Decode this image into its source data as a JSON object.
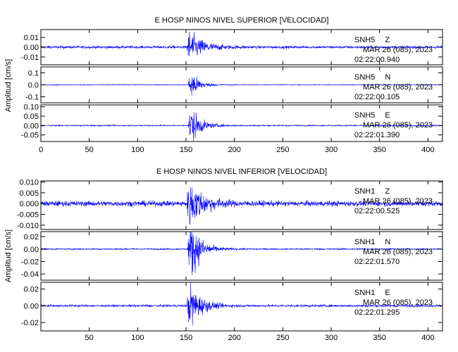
{
  "page": {
    "background": "#ffffff",
    "trace_color": "#0000ff",
    "axis_color": "#000000"
  },
  "chart_data": [
    {
      "type": "line",
      "title": "E HOSP NINOS NIVEL SUPERIOR [VELOCIDAD]",
      "xlabel": "",
      "ylabel": "Amplitud [cm/s]",
      "xlim": [
        0,
        415
      ],
      "x_ticks": [
        0,
        50,
        100,
        150,
        200,
        250,
        300,
        350,
        400
      ],
      "x_tick_labels": [
        "0",
        "50",
        "100",
        "150",
        "200",
        "250",
        "300",
        "350",
        "400"
      ],
      "panels": [
        {
          "station": "SNH5",
          "component": "Z",
          "date_label": "MAR 26 (085), 2023",
          "time_label": "02:22:00.940",
          "ylim": [
            -0.018,
            0.018
          ],
          "y_ticks": [
            0.01,
            0.0,
            -0.01
          ],
          "y_tick_labels": [
            "0.01",
            "0.00",
            "-0.01"
          ],
          "baseline_amplitude": 0.0012,
          "peak_amplitude": 0.016,
          "event_onset": 150,
          "event_peak_time": 153,
          "event_decay": 14
        },
        {
          "station": "SNH5",
          "component": "N",
          "date_label": "MAR 26 (085), 2023",
          "time_label": "02:22:00.105",
          "ylim": [
            -0.15,
            0.15
          ],
          "y_ticks": [
            0.1,
            0.0,
            -0.1
          ],
          "y_tick_labels": [
            "0.1",
            "0.0",
            "-0.1"
          ],
          "baseline_amplitude": 0.003,
          "peak_amplitude": 0.12,
          "event_onset": 152,
          "event_peak_time": 155,
          "event_decay": 8
        },
        {
          "station": "SNH5",
          "component": "E",
          "date_label": "MAR 26 (085), 2023",
          "time_label": "02:22:01.390",
          "ylim": [
            -0.085,
            0.11
          ],
          "y_ticks": [
            0.1,
            0.05,
            0.0,
            -0.05
          ],
          "y_tick_labels": [
            "0.10",
            "0.05",
            "0.00",
            "-0.05"
          ],
          "baseline_amplitude": 0.003,
          "peak_amplitude": 0.1,
          "event_onset": 152,
          "event_peak_time": 155,
          "event_decay": 9
        }
      ]
    },
    {
      "type": "line",
      "title": "E HOSP NINOS NIVEL INFERIOR [VELOCIDAD]",
      "xlabel": "",
      "ylabel": "Amplitud [cm/s]",
      "xlim": [
        0,
        415
      ],
      "x_ticks": [
        0,
        50,
        100,
        150,
        200,
        250,
        300,
        350,
        400
      ],
      "x_tick_labels": [
        "",
        "50",
        "100",
        "150",
        "200",
        "250",
        "300",
        "350",
        "400"
      ],
      "panels": [
        {
          "station": "SNH1",
          "component": "Z",
          "date_label": "MAR 26 (085), 2023",
          "time_label": "02:22:00.525",
          "ylim": [
            -0.012,
            0.0105
          ],
          "y_ticks": [
            0.01,
            0.005,
            0.0,
            -0.005,
            -0.01
          ],
          "y_tick_labels": [
            "0.010",
            "0.005",
            "0.000",
            "-0.005",
            "-0.010"
          ],
          "baseline_amplitude": 0.0011,
          "peak_amplitude": 0.0105,
          "event_onset": 150,
          "event_peak_time": 154,
          "event_decay": 14
        },
        {
          "station": "SNH1",
          "component": "N",
          "date_label": "MAR 26 (085), 2023",
          "time_label": "02:22:01.570",
          "ylim": [
            -0.05,
            0.028
          ],
          "y_ticks": [
            0.02,
            0.0,
            -0.02,
            -0.04
          ],
          "y_tick_labels": [
            "0.02",
            "0.00",
            "-0.02",
            "-0.04"
          ],
          "baseline_amplitude": 0.0011,
          "peak_amplitude": 0.045,
          "event_onset": 151,
          "event_peak_time": 155,
          "event_decay": 10
        },
        {
          "station": "SNH1",
          "component": "E",
          "date_label": "MAR 26 (085), 2023",
          "time_label": "02:22:01.295",
          "ylim": [
            -0.03,
            0.028
          ],
          "y_ticks": [
            0.02,
            0.0,
            -0.02
          ],
          "y_tick_labels": [
            "0.02",
            "0.00",
            "-0.02"
          ],
          "baseline_amplitude": 0.0012,
          "peak_amplitude": 0.027,
          "event_onset": 150,
          "event_peak_time": 154,
          "event_decay": 11
        }
      ]
    }
  ]
}
